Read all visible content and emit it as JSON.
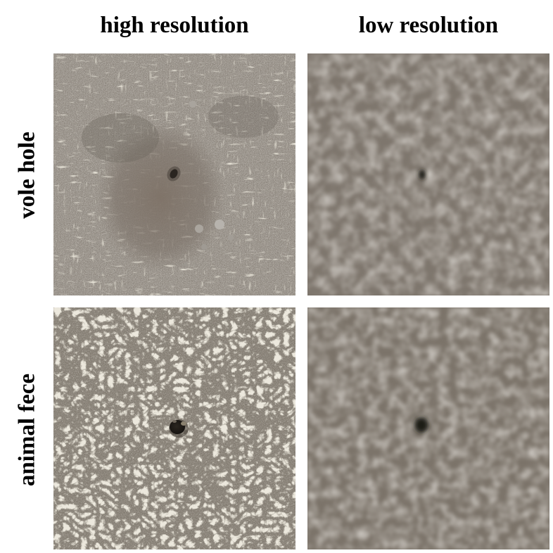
{
  "columns": {
    "high": "high resolution",
    "low": "low resolution"
  },
  "rows": {
    "vole": "vole hole",
    "fece": "animal fece"
  },
  "colors": {
    "soil_light": "#8f877d",
    "soil_dark": "#5f5850",
    "grass": "#c9c1ad",
    "blurred_soil": "#857d74",
    "target_dark": "#1d1a17"
  }
}
